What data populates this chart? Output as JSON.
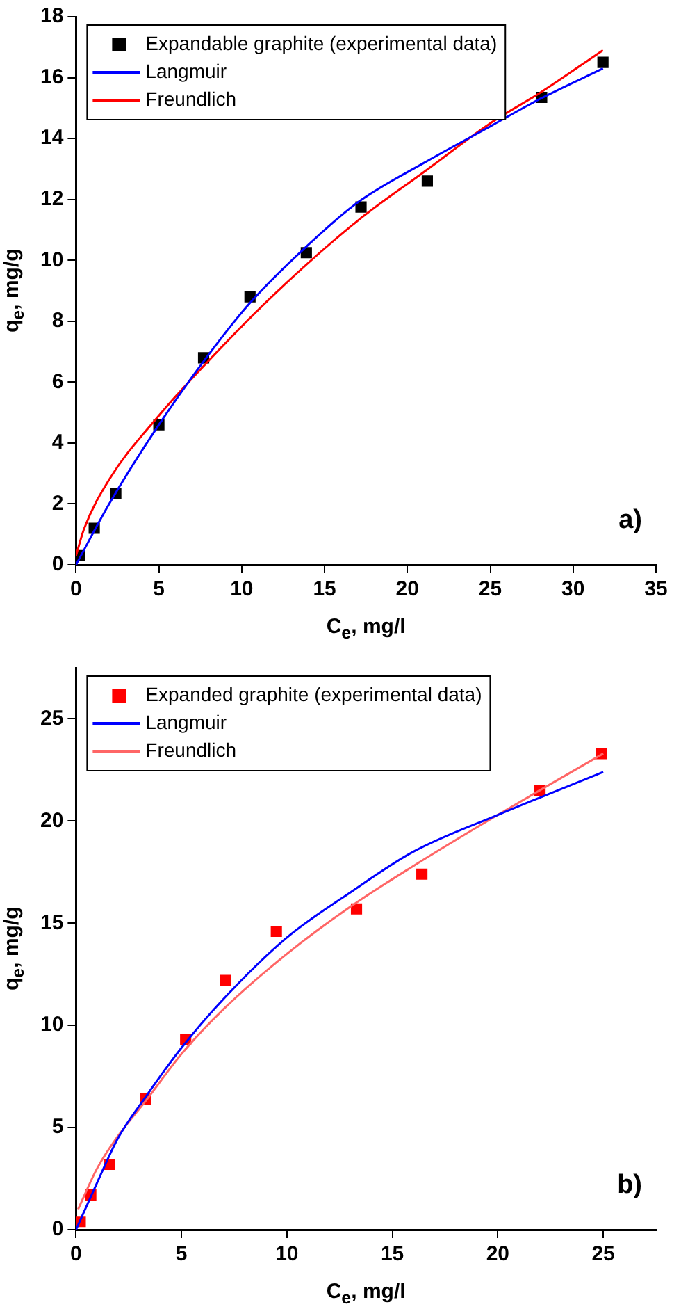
{
  "chart_data": [
    {
      "type": "scatter",
      "xlabel": "C$_{e}$, mg/l",
      "ylabel": "q$_{e}$, mg/g",
      "xlim": [
        0,
        35
      ],
      "ylim": [
        0,
        18
      ],
      "xticks": [
        0,
        5,
        10,
        15,
        20,
        25,
        30,
        35
      ],
      "yticks": [
        0,
        2,
        4,
        6,
        8,
        10,
        12,
        14,
        16,
        18
      ],
      "grid": false,
      "legend": "top left",
      "annotations": [
        "a)"
      ],
      "series": [
        {
          "name": "Expandable graphite (experimental data)",
          "type": "scatter",
          "marker": "square",
          "color": "#000000",
          "x": [
            0.2,
            1.1,
            2.4,
            5.0,
            7.7,
            10.5,
            13.9,
            17.2,
            21.2,
            28.1,
            31.8
          ],
          "values": [
            0.3,
            1.2,
            2.35,
            4.6,
            6.8,
            8.8,
            10.25,
            11.75,
            12.6,
            15.35,
            16.5
          ]
        },
        {
          "name": "Langmuir",
          "type": "line",
          "marker": "none",
          "line_style": "solid",
          "color": "#0000ff",
          "x": [
            0,
            2,
            5,
            8,
            10.5,
            14,
            17,
            21,
            25,
            28,
            31.8
          ],
          "values": [
            0,
            2.0,
            4.6,
            6.9,
            8.6,
            10.5,
            11.9,
            13.2,
            14.4,
            15.3,
            16.3
          ]
        },
        {
          "name": "Freundlich",
          "type": "line",
          "marker": "none",
          "line_style": "solid",
          "color": "#ff0000",
          "x": [
            0,
            0.5,
            2,
            5,
            8,
            12,
            17,
            21,
            25,
            28,
            31.8
          ],
          "values": [
            0.3,
            1.2,
            2.8,
            4.9,
            6.7,
            8.9,
            11.3,
            12.9,
            14.5,
            15.5,
            16.9
          ]
        }
      ]
    },
    {
      "type": "scatter",
      "xlabel": "C$_{e}$, mg/l",
      "ylabel": "q$_{e}$, mg/g",
      "xlim": [
        0,
        27.5
      ],
      "ylim": [
        0,
        27.5
      ],
      "xticks": [
        0,
        5,
        10,
        15,
        20,
        25
      ],
      "yticks": [
        0,
        5,
        10,
        15,
        20,
        25
      ],
      "grid": false,
      "legend": "top left",
      "annotations": [
        "b)"
      ],
      "series": [
        {
          "name": "Expanded graphite (experimental data)",
          "type": "scatter",
          "marker": "square",
          "color": "#ff0000",
          "x": [
            0.2,
            0.7,
            1.6,
            3.3,
            5.2,
            7.1,
            9.5,
            13.3,
            16.4,
            22,
            24.9
          ],
          "values": [
            0.4,
            1.7,
            3.2,
            6.4,
            9.3,
            12.2,
            14.6,
            15.7,
            17.4,
            21.5,
            23.3
          ]
        },
        {
          "name": "Langmuir",
          "type": "line",
          "marker": "none",
          "line_style": "solid",
          "color": "#0000ff",
          "x": [
            0,
            1,
            2,
            3.3,
            5,
            7,
            10,
            13,
            16,
            20,
            25
          ],
          "values": [
            0,
            2.3,
            4.5,
            6.5,
            8.9,
            11.3,
            14.3,
            16.5,
            18.5,
            20.3,
            22.4
          ]
        },
        {
          "name": "Freundlich",
          "type": "line",
          "marker": "none",
          "line_style": "solid",
          "color": "#ff6666",
          "x": [
            0.1,
            1,
            2,
            3.3,
            5,
            7,
            10,
            13,
            16,
            20,
            25
          ],
          "values": [
            1.0,
            3.0,
            4.6,
            6.3,
            8.6,
            10.8,
            13.5,
            15.8,
            17.8,
            20.3,
            23.3
          ]
        }
      ]
    }
  ]
}
